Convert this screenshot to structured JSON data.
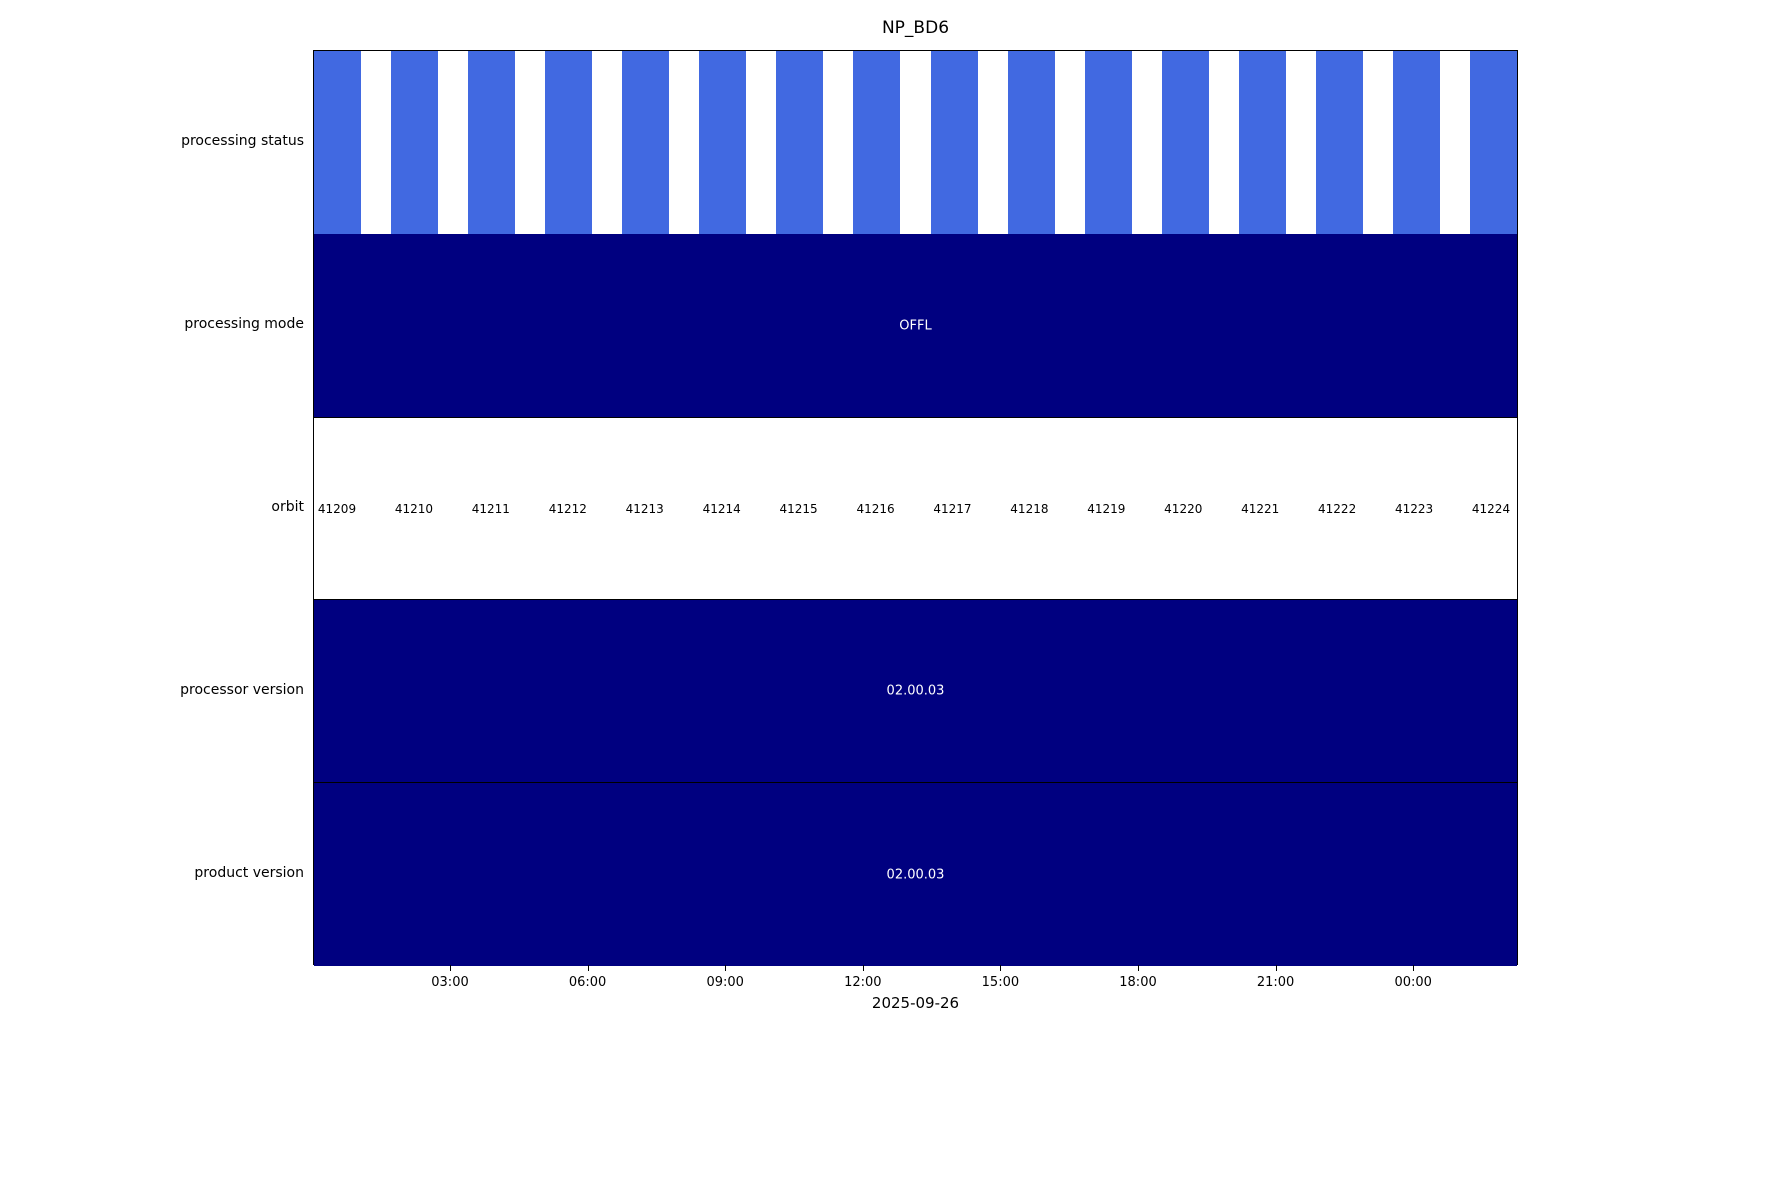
{
  "chart_data": {
    "type": "heatmap",
    "subtype": "status-timeline",
    "title": "NP_BD6",
    "xlabel": "2025-09-26",
    "x_ticks": [
      "03:00",
      "06:00",
      "09:00",
      "12:00",
      "15:00",
      "18:00",
      "21:00",
      "00:00"
    ],
    "colors": {
      "bar_blue": "#4169e1",
      "navy": "#000080",
      "background": "#ffffff",
      "text_on_navy": "#ffffff"
    },
    "rows": [
      {
        "label": "processing status",
        "type": "bars",
        "bar_count": 16
      },
      {
        "label": "processing mode",
        "type": "solid",
        "value": "OFFL"
      },
      {
        "label": "orbit",
        "type": "labels",
        "values": [
          "41209",
          "41210",
          "41211",
          "41212",
          "41213",
          "41214",
          "41215",
          "41216",
          "41217",
          "41218",
          "41219",
          "41220",
          "41221",
          "41222",
          "41223",
          "41224"
        ]
      },
      {
        "label": "processor version",
        "type": "solid",
        "value": "02.00.03"
      },
      {
        "label": "product version",
        "type": "solid",
        "value": "02.00.03"
      }
    ]
  }
}
